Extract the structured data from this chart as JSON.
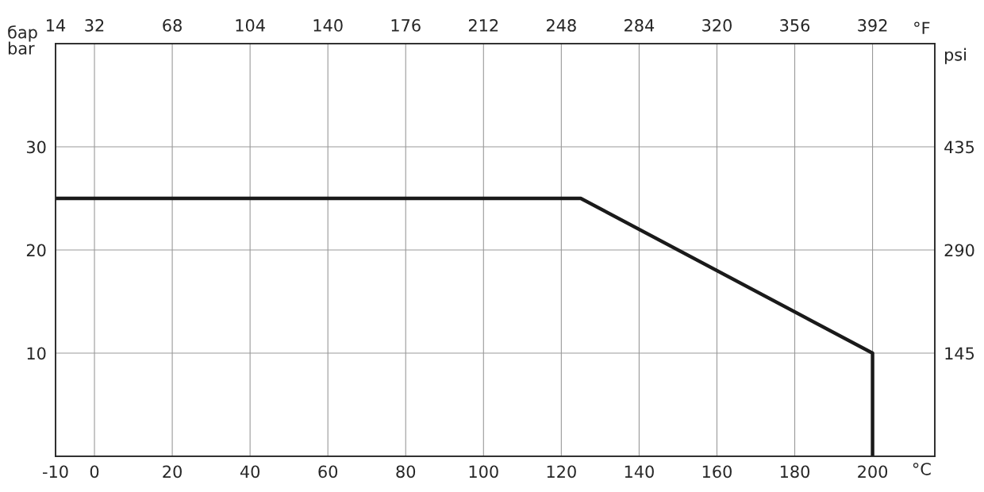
{
  "chart_data": {
    "type": "line",
    "xlabel": "°C",
    "ylabel": "бар\nbar",
    "y2label": "psi",
    "x2label": "°F",
    "series": [
      {
        "color": "#1a1a1a",
        "x": [
          -10,
          125,
          200,
          200
        ],
        "values": [
          25,
          25,
          10,
          0
        ]
      }
    ],
    "xlim": [
      -10,
      216
    ],
    "xticks": [
      -10,
      0,
      20,
      40,
      60,
      80,
      100,
      120,
      140,
      160,
      180,
      200
    ],
    "ylim": [
      0,
      40
    ],
    "yticks": [
      10,
      20,
      30
    ],
    "y2lim": [
      0,
      580
    ],
    "y2ticks": [
      145,
      290,
      435
    ],
    "x2lim": [
      14,
      420.8
    ],
    "x2ticks": [
      14,
      32,
      68,
      104,
      140,
      176,
      212,
      248,
      284,
      320,
      356,
      392
    ],
    "grid": true,
    "marker": "none",
    "line_style": "solid",
    "legend": false
  }
}
